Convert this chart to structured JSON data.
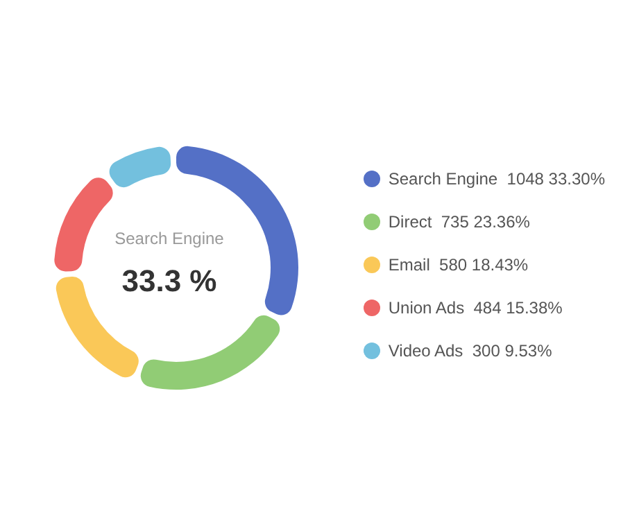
{
  "chart_data": {
    "type": "donut",
    "categories": [
      "Search Engine",
      "Direct",
      "Email",
      "Union Ads",
      "Video Ads"
    ],
    "values": [
      1048,
      735,
      580,
      484,
      300
    ],
    "colors": [
      "#5470c6",
      "#91cc75",
      "#fac858",
      "#ee6666",
      "#73c0de"
    ],
    "value_labels": [
      "1048  33.30%",
      "735  23.36%",
      "580  18.43%",
      "484  15.38%",
      "300  9.53%"
    ],
    "annotations": [
      "Search Engine",
      "33.3 %"
    ],
    "legend": "right"
  }
}
